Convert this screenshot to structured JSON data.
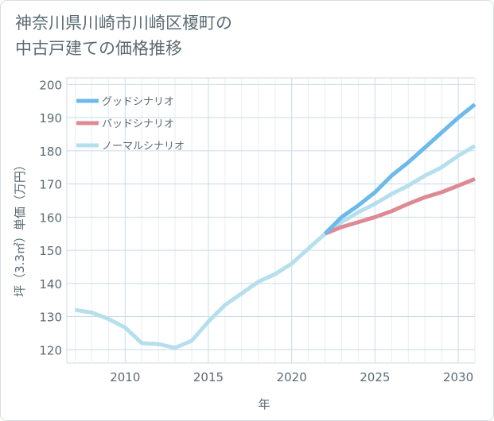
{
  "chart_data": {
    "type": "line",
    "title_lines": [
      "神奈川県川崎市川崎区榎町の",
      "中古戸建ての価格推移"
    ],
    "xlabel": "年",
    "ylabel": "坪（3.3㎡）単価（万円）",
    "xlim": [
      2006.5,
      2031
    ],
    "ylim": [
      116,
      202
    ],
    "xticks": [
      2010,
      2015,
      2020,
      2025,
      2030
    ],
    "yticks": [
      120,
      130,
      140,
      150,
      160,
      170,
      180,
      190,
      200
    ],
    "grid": true,
    "legend_position": "top-left",
    "series": [
      {
        "name": "グッドシナリオ",
        "color": "#6cb9ea",
        "x": [
          2022,
          2023,
          2024,
          2025,
          2026,
          2027,
          2028,
          2029,
          2030,
          2031
        ],
        "y": [
          155,
          160,
          163.5,
          167.5,
          172.5,
          176.5,
          181,
          185.5,
          190,
          194
        ]
      },
      {
        "name": "バッドシナリオ",
        "color": "#de8a94",
        "x": [
          2022,
          2023,
          2024,
          2025,
          2026,
          2027,
          2028,
          2029,
          2030,
          2031
        ],
        "y": [
          155,
          157,
          158.5,
          160,
          161.8,
          164,
          166,
          167.5,
          169.5,
          171.5
        ]
      },
      {
        "name": "ノーマルシナリオ",
        "color": "#b6dfee",
        "x": [
          2007,
          2008,
          2009,
          2010,
          2011,
          2012,
          2013,
          2014,
          2015,
          2016,
          2017,
          2018,
          2019,
          2020,
          2021,
          2022,
          2023,
          2024,
          2025,
          2026,
          2027,
          2028,
          2029,
          2030,
          2031
        ],
        "y": [
          132,
          131.2,
          129.3,
          126.7,
          122,
          121.7,
          120.6,
          122.7,
          128.5,
          133.5,
          137,
          140.5,
          142.8,
          146,
          150.5,
          155,
          158.5,
          161.5,
          164,
          167,
          169.5,
          172.5,
          175,
          178.5,
          181.5
        ]
      }
    ]
  }
}
